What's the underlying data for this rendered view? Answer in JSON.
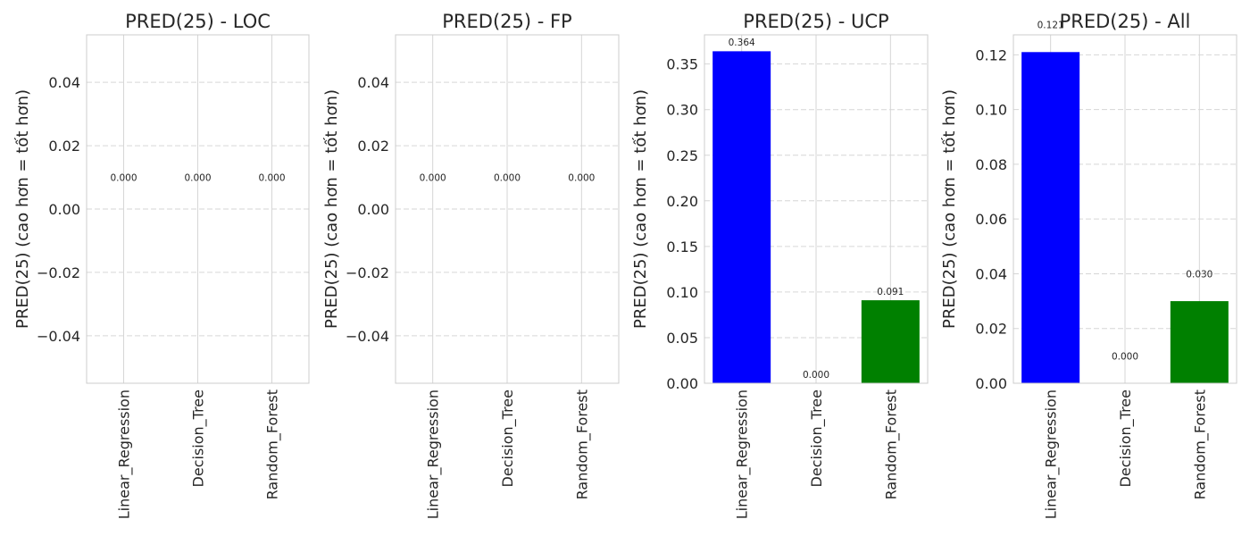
{
  "chart_data": [
    {
      "type": "bar",
      "title": "PRED(25) - LOC",
      "ylabel": "PRED(25) (cao hơn = tốt hơn)",
      "categories": [
        "Linear_Regression",
        "Decision_Tree",
        "Random_Forest"
      ],
      "values": [
        0.0,
        0.0,
        0.0
      ],
      "value_labels": [
        "0.000",
        "0.000",
        "0.000"
      ],
      "colors": [
        "#0000ff",
        "#808080",
        "#008000"
      ],
      "ylim": [
        -0.055,
        0.055
      ],
      "yticks": [
        -0.04,
        -0.02,
        0.0,
        0.02,
        0.04
      ],
      "ytick_labels": [
        "−0.04",
        "−0.02",
        "0.00",
        "0.02",
        "0.04"
      ],
      "grid": true
    },
    {
      "type": "bar",
      "title": "PRED(25) - FP",
      "ylabel": "PRED(25) (cao hơn = tốt hơn)",
      "categories": [
        "Linear_Regression",
        "Decision_Tree",
        "Random_Forest"
      ],
      "values": [
        0.0,
        0.0,
        0.0
      ],
      "value_labels": [
        "0.000",
        "0.000",
        "0.000"
      ],
      "colors": [
        "#0000ff",
        "#808080",
        "#008000"
      ],
      "ylim": [
        -0.055,
        0.055
      ],
      "yticks": [
        -0.04,
        -0.02,
        0.0,
        0.02,
        0.04
      ],
      "ytick_labels": [
        "−0.04",
        "−0.02",
        "0.00",
        "0.02",
        "0.04"
      ],
      "grid": true
    },
    {
      "type": "bar",
      "title": "PRED(25) - UCP",
      "ylabel": "PRED(25) (cao hơn = tốt hơn)",
      "categories": [
        "Linear_Regression",
        "Decision_Tree",
        "Random_Forest"
      ],
      "values": [
        0.364,
        0.0,
        0.091
      ],
      "value_labels": [
        "0.364",
        "0.000",
        "0.091"
      ],
      "colors": [
        "#0000ff",
        "#808080",
        "#008000"
      ],
      "ylim": [
        0,
        0.382
      ],
      "yticks": [
        0,
        0.05,
        0.1,
        0.15,
        0.2,
        0.25,
        0.3,
        0.35
      ],
      "ytick_labels": [
        "0.00",
        "0.05",
        "0.10",
        "0.15",
        "0.20",
        "0.25",
        "0.30",
        "0.35"
      ],
      "grid": true
    },
    {
      "type": "bar",
      "title": "PRED(25) - All",
      "ylabel": "PRED(25) (cao hơn = tốt hơn)",
      "categories": [
        "Linear_Regression",
        "Decision_Tree",
        "Random_Forest"
      ],
      "values": [
        0.121,
        0.0,
        0.03
      ],
      "value_labels": [
        "0.121",
        "0.000",
        "0.030"
      ],
      "colors": [
        "#0000ff",
        "#808080",
        "#008000"
      ],
      "ylim": [
        0,
        0.1273
      ],
      "yticks": [
        0,
        0.02,
        0.04,
        0.06,
        0.08,
        0.1,
        0.12
      ],
      "ytick_labels": [
        "0.00",
        "0.02",
        "0.04",
        "0.06",
        "0.08",
        "0.10",
        "0.12"
      ],
      "grid": true
    }
  ]
}
